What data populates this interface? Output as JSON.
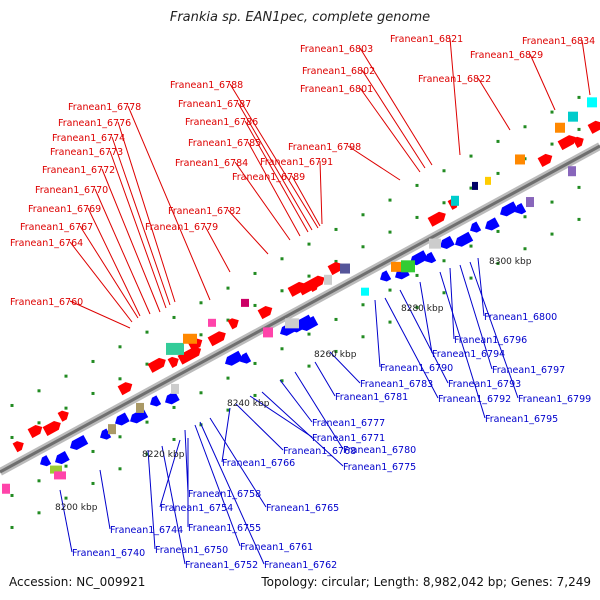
{
  "title": "Frankia sp. EAN1pec, complete genome",
  "footer": {
    "accession": "Accession: NC_009921",
    "summary": "Topology: circular; Length: 8,982,042 bp; Genes: 7,249"
  },
  "colors": {
    "forward_label": "#dd0000",
    "reverse_label": "#0000cc",
    "forward_gene": "#ff0000",
    "reverse_gene": "#0000ff",
    "backbone": "#888888",
    "tick_dot": "#228b22"
  },
  "kbp_ticks": [
    "8200 kbp",
    "8220 kbp",
    "8240 kbp",
    "8260 kbp",
    "8280 kbp",
    "8300 kbp"
  ],
  "forward_labels": [
    "Franean1_6760",
    "Franean1_6764",
    "Franean1_6767",
    "Franean1_6769",
    "Franean1_6770",
    "Franean1_6772",
    "Franean1_6773",
    "Franean1_6774",
    "Franean1_6776",
    "Franean1_6778",
    "Franean1_6779",
    "Franean1_6782",
    "Franean1_6784",
    "Franean1_6785",
    "Franean1_6786",
    "Franean1_6787",
    "Franean1_6788",
    "Franean1_6789",
    "Franean1_6791",
    "Franean1_6798",
    "Franean1_6801",
    "Franean1_6802",
    "Franean1_6803",
    "Franean1_6821",
    "Franean1_6822",
    "Franean1_6829",
    "Franean1_6834"
  ],
  "reverse_labels": [
    "Franean1_6740",
    "Franean1_6744",
    "Franean1_6750",
    "Franean1_6752",
    "Franean1_6754",
    "Franean1_6755",
    "Franean1_6758",
    "Franean1_6761",
    "Franean1_6762",
    "Franean1_6765",
    "Franean1_6766",
    "Franean1_6768",
    "Franean1_6771",
    "Franean1_6775",
    "Franean1_6777",
    "Franean1_6780",
    "Franean1_6781",
    "Franean1_6783",
    "Franean1_6790",
    "Franean1_6792",
    "Franean1_6793",
    "Franean1_6794",
    "Franean1_6795",
    "Franean1_6796",
    "Franean1_6797",
    "Franean1_6799",
    "Franean1_6800"
  ]
}
